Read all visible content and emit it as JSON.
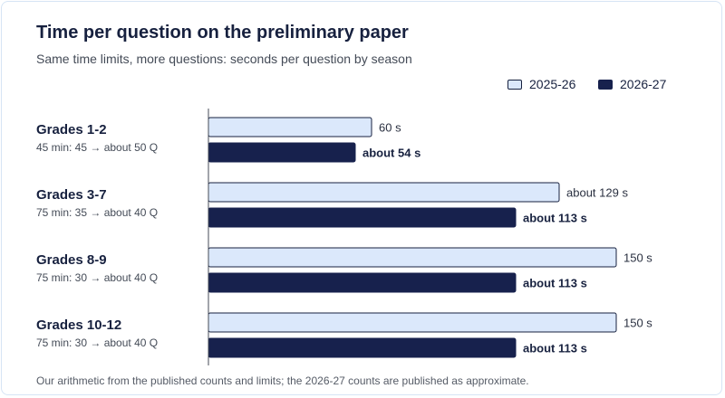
{
  "chart_data": {
    "type": "bar",
    "orientation": "horizontal",
    "title": "Time per question on the preliminary paper",
    "subtitle": "Same time limits, more questions: seconds per question by season",
    "categories": [
      "Grades 1-2",
      "Grades 3-7",
      "Grades 8-9",
      "Grades 10-12"
    ],
    "category_notes": [
      "45 min: 45 → about 50 Q",
      "75 min: 35 → about 40 Q",
      "75 min: 30 → about 40 Q",
      "75 min: 30 → about 40 Q"
    ],
    "series": [
      {
        "name": "2025-26",
        "color": "#dbe8fb",
        "stroke": "#17213f",
        "values": [
          60,
          129,
          150,
          150
        ],
        "labels": [
          "60 s",
          "about 129 s",
          "150 s",
          "150 s"
        ]
      },
      {
        "name": "2026-27",
        "color": "#17214d",
        "stroke": "#17214d",
        "values": [
          54,
          113,
          113,
          113
        ],
        "labels": [
          "about 54 s",
          "about 113 s",
          "about 113 s",
          "about 113 s"
        ]
      }
    ],
    "xlim": [
      0,
      150
    ],
    "xlabel": "",
    "ylabel": "",
    "grid": false,
    "legend_position": "top-right",
    "footnote": "Our arithmetic from the published counts and limits; the 2026-27 counts are published as approximate."
  }
}
